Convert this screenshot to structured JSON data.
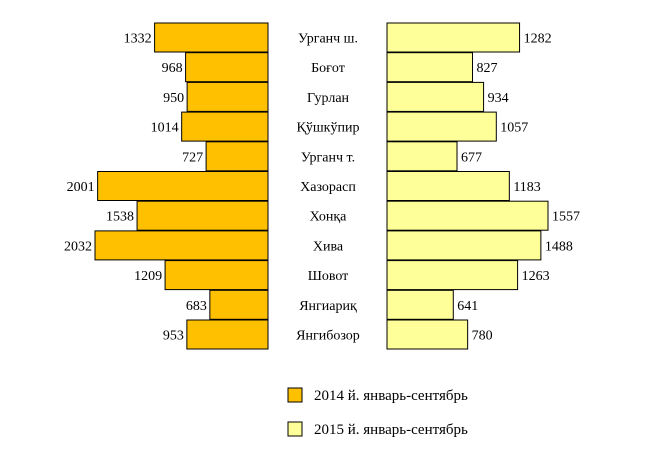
{
  "chart_data": {
    "type": "bar",
    "orientation": "horizontal-butterfly",
    "categories": [
      "Урганч ш.",
      "Боғот",
      "Гурлан",
      "Қўшкўпир",
      "Урганч т.",
      "Хазорасп",
      "Хонқа",
      "Хива",
      "Шовот",
      "Янгиариқ",
      "Янгибозор"
    ],
    "series": [
      {
        "name": "2014 й. январь-сентябрь",
        "color": "#ffc000",
        "side": "left",
        "values": [
          1332,
          968,
          950,
          1014,
          727,
          2001,
          1538,
          2032,
          1209,
          683,
          953
        ]
      },
      {
        "name": "2015 й. январь-сентябрь",
        "color": "#ffff99",
        "side": "right",
        "values": [
          1282,
          827,
          934,
          1057,
          677,
          1183,
          1557,
          1488,
          1263,
          641,
          780
        ]
      }
    ],
    "legend_placement": "bottom",
    "grid": false
  }
}
